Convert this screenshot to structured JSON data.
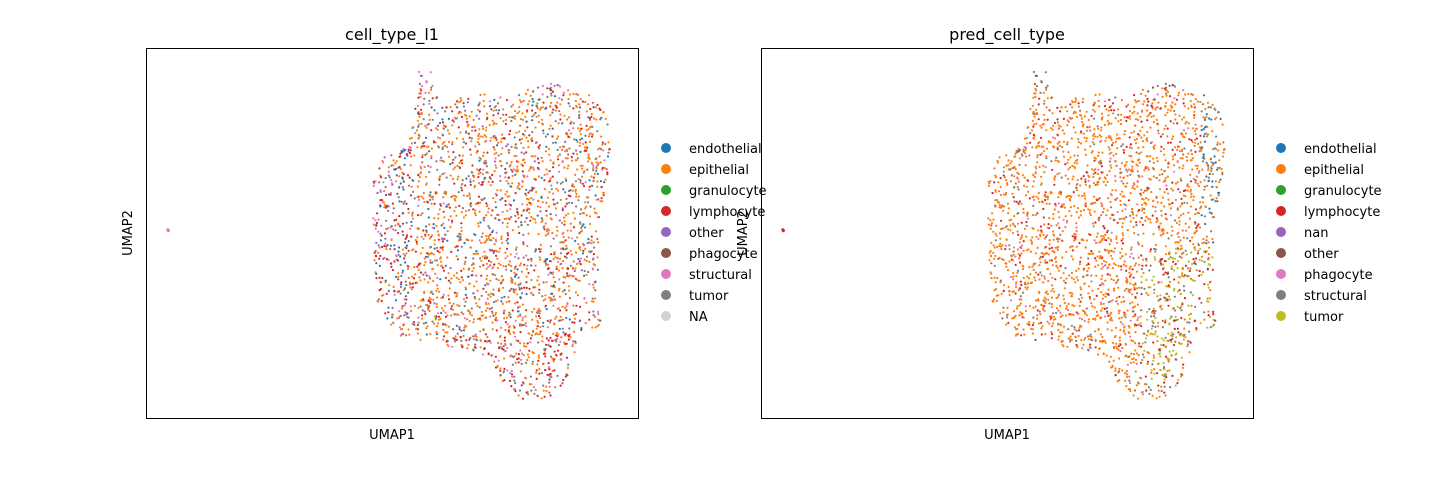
{
  "chart_data": [
    {
      "type": "scatter",
      "title": "cell_type_l1",
      "xlabel": "UMAP1",
      "ylabel": "UMAP2",
      "grid": false,
      "legend_position": "right",
      "series": [
        {
          "name": "endothelial",
          "color": "#1f77b4"
        },
        {
          "name": "epithelial",
          "color": "#ff7f0e"
        },
        {
          "name": "granulocyte",
          "color": "#2ca02c"
        },
        {
          "name": "lymphocyte",
          "color": "#d62728"
        },
        {
          "name": "other",
          "color": "#9467bd"
        },
        {
          "name": "phagocyte",
          "color": "#8c564b"
        },
        {
          "name": "structural",
          "color": "#e377c2"
        },
        {
          "name": "tumor",
          "color": "#7f7f7f"
        },
        {
          "name": "NA",
          "color": "#d3d3d3"
        }
      ]
    },
    {
      "type": "scatter",
      "title": "pred_cell_type",
      "xlabel": "UMAP1",
      "ylabel": "UMAP2",
      "grid": false,
      "legend_position": "right",
      "series": [
        {
          "name": "endothelial",
          "color": "#1f77b4"
        },
        {
          "name": "epithelial",
          "color": "#ff7f0e"
        },
        {
          "name": "granulocyte",
          "color": "#2ca02c"
        },
        {
          "name": "lymphocyte",
          "color": "#d62728"
        },
        {
          "name": "nan",
          "color": "#9467bd"
        },
        {
          "name": "other",
          "color": "#8c564b"
        },
        {
          "name": "phagocyte",
          "color": "#e377c2"
        },
        {
          "name": "structural",
          "color": "#7f7f7f"
        },
        {
          "name": "tumor",
          "color": "#bcbd22"
        }
      ]
    }
  ]
}
